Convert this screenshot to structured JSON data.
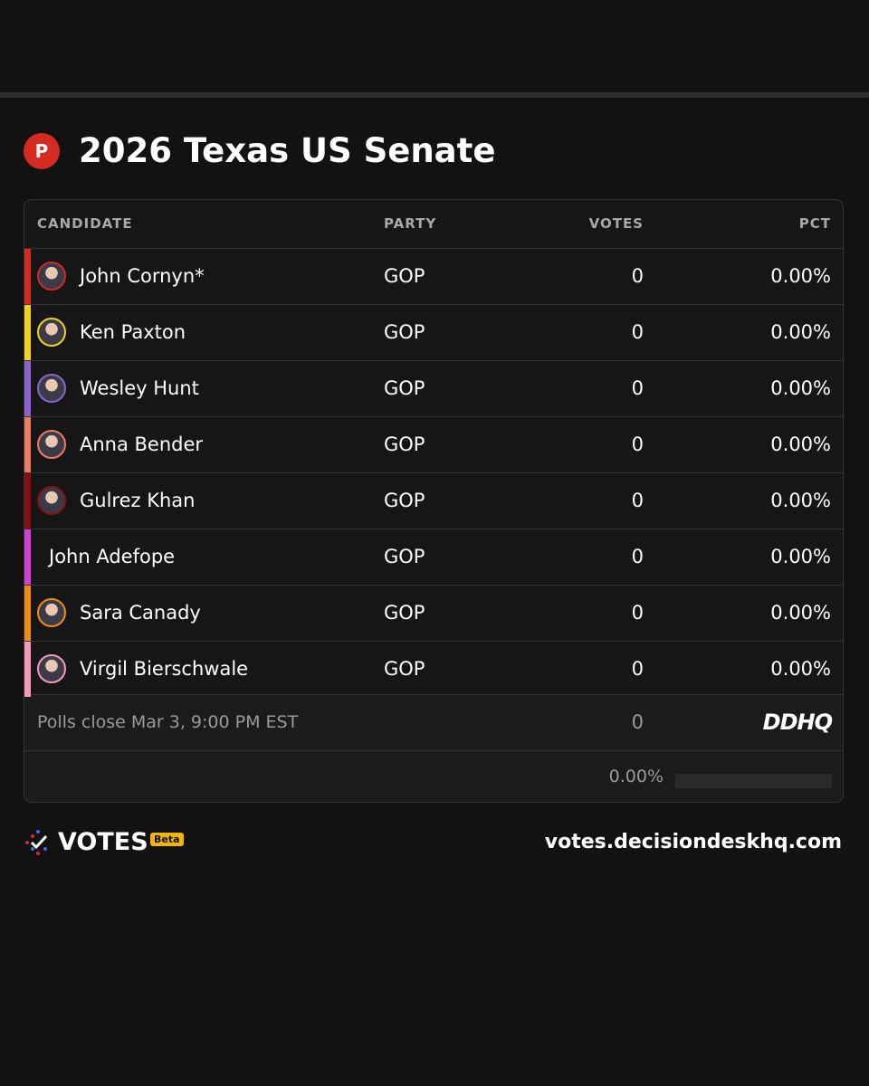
{
  "header": {
    "badge": "P",
    "title": "2026 Texas US Senate"
  },
  "table": {
    "columns": [
      "CANDIDATE",
      "PARTY",
      "VOTES",
      "PCT"
    ],
    "rows": [
      {
        "name": "John Cornyn*",
        "party": "GOP",
        "votes": "0",
        "pct": "0.00%",
        "color": "#d42a22",
        "photo": true
      },
      {
        "name": "Ken Paxton",
        "party": "GOP",
        "votes": "0",
        "pct": "0.00%",
        "color": "#f2d21a",
        "photo": true
      },
      {
        "name": "Wesley Hunt",
        "party": "GOP",
        "votes": "0",
        "pct": "0.00%",
        "color": "#8c62cf",
        "photo": true
      },
      {
        "name": "Anna Bender",
        "party": "GOP",
        "votes": "0",
        "pct": "0.00%",
        "color": "#ef7a62",
        "photo": true
      },
      {
        "name": "Gulrez Khan",
        "party": "GOP",
        "votes": "0",
        "pct": "0.00%",
        "color": "#8a0f10",
        "photo": true
      },
      {
        "name": "John Adefope",
        "party": "GOP",
        "votes": "0",
        "pct": "0.00%",
        "color": "#d23fd2",
        "photo": false
      },
      {
        "name": "Sara Canady",
        "party": "GOP",
        "votes": "0",
        "pct": "0.00%",
        "color": "#f08c12",
        "photo": true
      },
      {
        "name": "Virgil Bierschwale",
        "party": "GOP",
        "votes": "0",
        "pct": "0.00%",
        "color": "#f49ab8",
        "photo": true
      }
    ],
    "footer": {
      "note": "Polls close Mar 3, 9:00 PM EST",
      "total_votes": "0",
      "logo": "DDHQ",
      "reporting": "0.00%"
    }
  },
  "brand": {
    "name": "VOTES",
    "tag": "Beta",
    "url": "votes.decisiondeskhq.com"
  }
}
